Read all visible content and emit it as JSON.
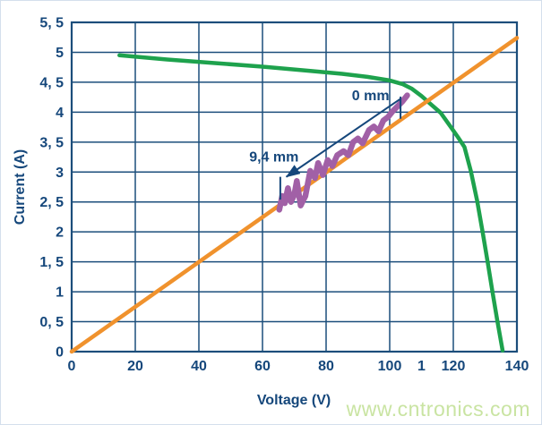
{
  "watermark": {
    "text": "www.cntronics.com",
    "color": "#c9e4a2"
  },
  "chart_data": {
    "type": "line",
    "title": "",
    "xlabel": "Voltage (V)",
    "ylabel": "Current (A)",
    "xlim": [
      0,
      140
    ],
    "ylim": [
      0,
      5.5
    ],
    "grid": true,
    "legend": "none",
    "grid_color": "#1c4e7b",
    "axis_color": "#1c4e7b",
    "label_color": "#15477b",
    "x_ticks": [
      {
        "value": 0,
        "label": "0",
        "grid": true
      },
      {
        "value": 20,
        "label": "20",
        "grid": true
      },
      {
        "value": 40,
        "label": "40",
        "grid": true
      },
      {
        "value": 60,
        "label": "60",
        "grid": true
      },
      {
        "value": 80,
        "label": "80",
        "grid": true
      },
      {
        "value": 100,
        "label": "100",
        "grid": true
      },
      {
        "value": 110,
        "label": "1",
        "grid": false
      },
      {
        "value": 120,
        "label": "120",
        "grid": true
      },
      {
        "value": 140,
        "label": "140",
        "grid": true
      }
    ],
    "y_ticks": [
      {
        "value": 0,
        "label": "0"
      },
      {
        "value": 0.5,
        "label": "0, 5"
      },
      {
        "value": 1,
        "label": "1"
      },
      {
        "value": 1.5,
        "label": "1, 5"
      },
      {
        "value": 2,
        "label": "2"
      },
      {
        "value": 2.5,
        "label": "2, 5"
      },
      {
        "value": 3,
        "label": "3"
      },
      {
        "value": 3.5,
        "label": "3, 5"
      },
      {
        "value": 4,
        "label": "4"
      },
      {
        "value": 4.5,
        "label": "4, 5"
      },
      {
        "value": 5,
        "label": "5"
      },
      {
        "value": 5.5,
        "label": "5, 5"
      }
    ],
    "series": [
      {
        "name": "solar-panel-iv-curve",
        "color": "#1ea24d",
        "stroke_width": 4.5,
        "points": [
          [
            15,
            4.95
          ],
          [
            30,
            4.88
          ],
          [
            45,
            4.82
          ],
          [
            60,
            4.76
          ],
          [
            75,
            4.69
          ],
          [
            85,
            4.64
          ],
          [
            93,
            4.59
          ],
          [
            100,
            4.53
          ],
          [
            104,
            4.47
          ],
          [
            107,
            4.39
          ],
          [
            110,
            4.27
          ],
          [
            113,
            4.13
          ],
          [
            116,
            3.99
          ],
          [
            119,
            3.77
          ],
          [
            121.5,
            3.58
          ],
          [
            123.5,
            3.42
          ],
          [
            125.5,
            3.02
          ],
          [
            127.5,
            2.52
          ],
          [
            129.2,
            2.0
          ],
          [
            130.8,
            1.5
          ],
          [
            132.3,
            1.0
          ],
          [
            133.9,
            0.5
          ],
          [
            135.5,
            0.02
          ]
        ]
      },
      {
        "name": "resistive-load-line",
        "color": "#f0922d",
        "stroke_width": 4.5,
        "points": [
          [
            0,
            0
          ],
          [
            140,
            5.24
          ]
        ]
      },
      {
        "name": "measured-operating-point-trace",
        "color": "#a160a6",
        "stroke_width": 6.5,
        "points": [
          [
            65.3,
            2.37
          ],
          [
            66.2,
            2.6
          ],
          [
            67,
            2.48
          ],
          [
            68,
            2.73
          ],
          [
            69,
            2.5
          ],
          [
            70,
            2.62
          ],
          [
            70.8,
            2.85
          ],
          [
            72,
            2.44
          ],
          [
            73.5,
            2.6
          ],
          [
            75,
            3.02
          ],
          [
            76.5,
            2.9
          ],
          [
            77.5,
            3.15
          ],
          [
            79,
            2.95
          ],
          [
            80.5,
            3.2
          ],
          [
            82,
            3.1
          ],
          [
            83.5,
            3.28
          ],
          [
            85.5,
            3.35
          ],
          [
            87,
            3.28
          ],
          [
            88.5,
            3.5
          ],
          [
            90,
            3.56
          ],
          [
            91.5,
            3.48
          ],
          [
            93.5,
            3.7
          ],
          [
            95,
            3.76
          ],
          [
            96.5,
            3.68
          ],
          [
            98,
            3.86
          ],
          [
            99.5,
            3.92
          ],
          [
            101,
            4.02
          ],
          [
            102.5,
            4.1
          ],
          [
            104,
            4.18
          ],
          [
            105.5,
            4.28
          ]
        ]
      }
    ],
    "annotations": {
      "color": "#15477b",
      "labels": [
        {
          "name": "annotation-label-0mm",
          "text": "0 mm",
          "x": 94,
          "y": 4.28
        },
        {
          "name": "annotation-label-9-4mm",
          "text": "9,4 mm",
          "x": 63.6,
          "y": 3.26
        }
      ],
      "arrow": {
        "from": [
          103.3,
          4.22
        ],
        "to": [
          67.5,
          2.92
        ]
      },
      "ticks": [
        {
          "x": 103.4,
          "y1": 4.26,
          "y2": 3.89
        },
        {
          "x": 65.6,
          "y1": 2.92,
          "y2": 2.54
        }
      ]
    }
  }
}
